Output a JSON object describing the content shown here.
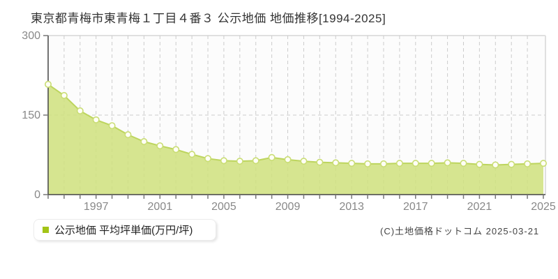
{
  "header": {
    "title": "東京都青梅市東青梅１丁目４番３ 公示地価 地価推移[1994-2025]"
  },
  "legend": {
    "label": "公示地価 平均坪単価(万円/坪)",
    "marker_color": "#a3c417"
  },
  "footer": {
    "copyright": "(C)土地価格ドットコム 2025-03-21"
  },
  "chart_data": {
    "type": "area",
    "title": "東京都青梅市東青梅１丁目４番３ 公示地価 地価推移[1994-2025]",
    "series_name": "公示地価 平均坪単価",
    "unit": "万円/坪",
    "x": [
      1994,
      1995,
      1996,
      1997,
      1998,
      1999,
      2000,
      2001,
      2002,
      2003,
      2004,
      2005,
      2006,
      2007,
      2008,
      2009,
      2010,
      2011,
      2012,
      2013,
      2014,
      2015,
      2016,
      2017,
      2018,
      2019,
      2020,
      2021,
      2022,
      2023,
      2024,
      2025
    ],
    "values": [
      208,
      187,
      158,
      141,
      130,
      113,
      100,
      92,
      85,
      76,
      68,
      64,
      63,
      64,
      70,
      66,
      63,
      61,
      60,
      59,
      58,
      58,
      59,
      59,
      59,
      60,
      59,
      57,
      56,
      57,
      58,
      59
    ],
    "xlabel": "",
    "ylabel": "平均坪単価(万円/坪)",
    "ylim": [
      0,
      300
    ],
    "yticks": [
      0,
      150,
      300
    ],
    "xtick_labels": [
      1997,
      2001,
      2005,
      2009,
      2013,
      2017,
      2021,
      2025
    ],
    "grid": "vertical dashed per year, horizontal dashed at 150",
    "legend_position": "bottom-left",
    "colors": {
      "area_fill": "#cfe07c",
      "line": "#bdd55e",
      "marker_fill": "#fffef6",
      "marker_stroke": "#c9dd74",
      "grid": "#cccccc",
      "axis": "#444444",
      "tick": "#777777",
      "tick_label": "#888888",
      "plot_border": "#e0e0e0",
      "plot_bg": "#fcfcfc"
    }
  }
}
